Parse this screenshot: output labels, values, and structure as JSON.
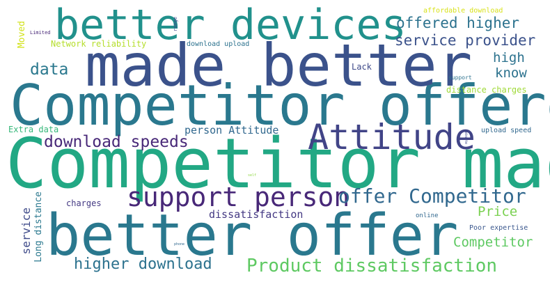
{
  "words": [
    {
      "id": "better-offer",
      "text": "better offer",
      "color": "#2a788e"
    },
    {
      "id": "competitor-made",
      "text": "Competitor made",
      "color": "#22a884"
    },
    {
      "id": "competitor-offered",
      "text": "Competitor offered",
      "color": "#2a788e"
    },
    {
      "id": "made-better",
      "text": "made better",
      "color": "#3b528b"
    },
    {
      "id": "better-devices",
      "text": "better devices",
      "color": "#21918c"
    },
    {
      "id": "attitude",
      "text": "Attitude",
      "color": "#414487"
    },
    {
      "id": "support-person",
      "text": "support person",
      "color": "#482878"
    },
    {
      "id": "offer-competitor",
      "text": "offer Competitor",
      "color": "#31688e"
    },
    {
      "id": "product-dissatisfaction",
      "text": "Product dissatisfaction",
      "color": "#5ec962"
    },
    {
      "id": "higher-download",
      "text": "higher download",
      "color": "#2c728e"
    },
    {
      "id": "download-speeds",
      "text": "download speeds",
      "color": "#482878"
    },
    {
      "id": "offered-higher",
      "text": "offered higher",
      "color": "#2c728e"
    },
    {
      "id": "service-provider",
      "text": "service provider",
      "color": "#3b528b"
    },
    {
      "id": "data",
      "text": "data",
      "color": "#2a788e"
    },
    {
      "id": "high",
      "text": "high",
      "color": "#2c728e"
    },
    {
      "id": "know",
      "text": "know",
      "color": "#2c728e"
    },
    {
      "id": "competitor-small",
      "text": "Competitor",
      "color": "#5ec962"
    },
    {
      "id": "price",
      "text": "Price",
      "color": "#7ad151"
    },
    {
      "id": "person-attitude",
      "text": "person Attitude",
      "color": "#31688e"
    },
    {
      "id": "dissatisfaction",
      "text": "dissatisfaction",
      "color": "#443983"
    },
    {
      "id": "network-reliability",
      "text": "Network reliability",
      "color": "#b5de2b"
    },
    {
      "id": "distance-charges",
      "text": "distance charges",
      "color": "#a0da39"
    },
    {
      "id": "extra-data",
      "text": "Extra data",
      "color": "#35b779"
    },
    {
      "id": "charges",
      "text": "charges",
      "color": "#443983"
    },
    {
      "id": "lack",
      "text": "Lack",
      "color": "#3e4989"
    },
    {
      "id": "download-upload",
      "text": "download upload",
      "color": "#2c728e"
    },
    {
      "id": "affordable-download",
      "text": "affordable download",
      "color": "#d8e219"
    },
    {
      "id": "upload-speed",
      "text": "upload speed",
      "color": "#31688e"
    },
    {
      "id": "poor-expertise",
      "text": "Poor expertise",
      "color": "#39568c"
    },
    {
      "id": "online",
      "text": "online",
      "color": "#31688e"
    },
    {
      "id": "support",
      "text": "support",
      "color": "#2c728e"
    },
    {
      "id": "limited",
      "text": "Limited",
      "color": "#482878"
    },
    {
      "id": "moved",
      "text": "Moved",
      "color": "#d2e21b"
    },
    {
      "id": "service",
      "text": "service",
      "color": "#3e4a89"
    },
    {
      "id": "long-distance",
      "text": "Long distance",
      "color": "#2a788e"
    },
    {
      "id": "range",
      "text": "range",
      "color": "#404688"
    },
    {
      "id": "website",
      "text": "website",
      "color": "#3e4989"
    },
    {
      "id": "self",
      "text": "self",
      "color": "#90d743"
    },
    {
      "id": "phone",
      "text": "phone",
      "color": "#31688e"
    }
  ]
}
